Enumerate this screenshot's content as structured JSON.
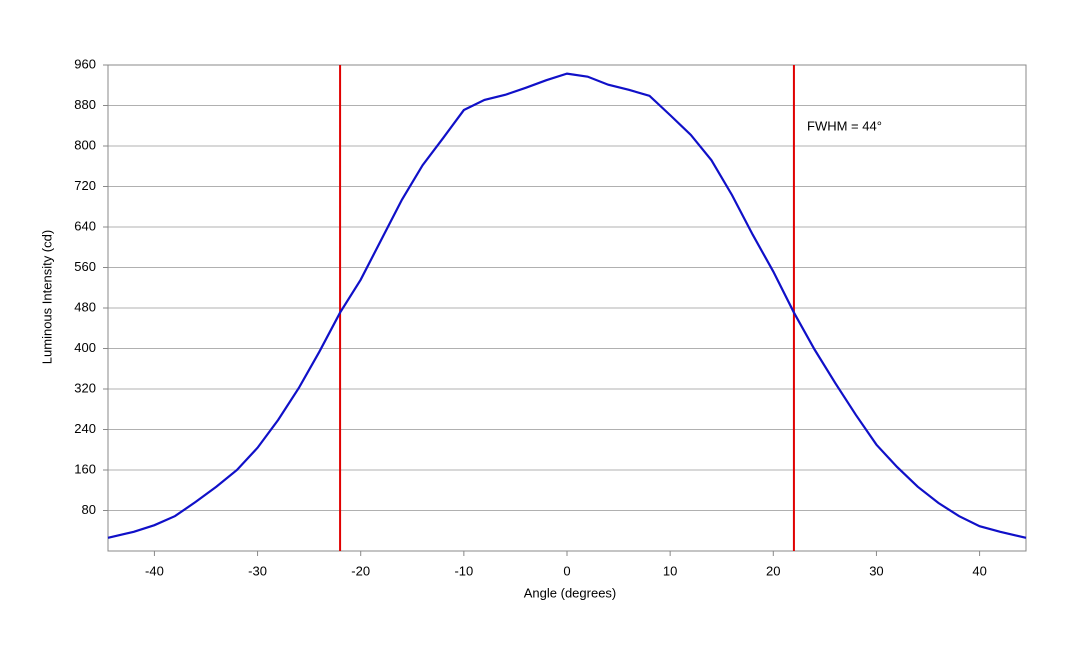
{
  "chart_data": {
    "type": "line",
    "x_label": "Angle (degrees)",
    "y_label": "Luminous Intensity (cd)",
    "annotation": "FWHM = 44°",
    "x": [
      -44.5,
      -42,
      -40,
      -38,
      -36,
      -34,
      -32,
      -30,
      -28,
      -26,
      -24,
      -22,
      -20,
      -18,
      -16,
      -14,
      -12,
      -10,
      -8,
      -6,
      -4,
      -2,
      0,
      2,
      4,
      6,
      8,
      10,
      12,
      14,
      16,
      18,
      20,
      22,
      24,
      26,
      28,
      30,
      32,
      34,
      36,
      38,
      40,
      42,
      44.5
    ],
    "series": [
      {
        "color": "#1010c8",
        "values": [
          26,
          38,
          51,
          69,
          97,
          127,
          160,
          204,
          259,
          322,
          394,
          471,
          536,
          615,
          694,
          762,
          816,
          871,
          891,
          901,
          915,
          930,
          943,
          937,
          921,
          911,
          899,
          861,
          822,
          772,
          703,
          625,
          552,
          471,
          398,
          332,
          269,
          210,
          166,
          127,
          95,
          69,
          49,
          38,
          26
        ]
      }
    ],
    "vlines": [
      -22,
      22
    ],
    "vline_color": "#e00000",
    "xlim": [
      -44.5,
      44.5
    ],
    "xticks": [
      -40,
      -30,
      -20,
      -10,
      0,
      10,
      20,
      30,
      40
    ],
    "ylim": [
      0,
      960
    ],
    "yticks": [
      80,
      160,
      240,
      320,
      400,
      480,
      560,
      640,
      720,
      800,
      880,
      960
    ],
    "grid": true
  }
}
